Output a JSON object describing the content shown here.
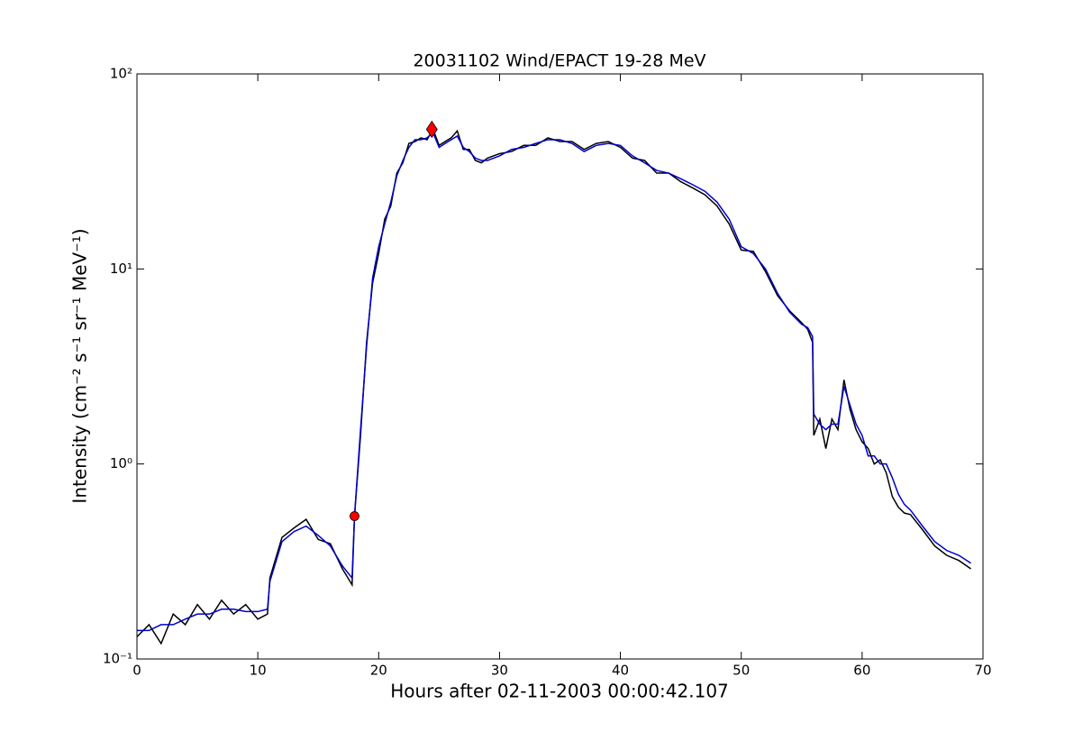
{
  "chart_data": {
    "type": "line",
    "title": "20031102 Wind/EPACT 19-28 MeV",
    "x_label": "Hours after 02-11-2003 00:00:42.107",
    "y_label": "Intensity (cm⁻² s⁻¹ sr⁻¹ MeV⁻¹)",
    "y_log": true,
    "xlim": [
      0,
      70
    ],
    "xticks": [
      0,
      10,
      20,
      30,
      40,
      50,
      60,
      70
    ],
    "ylim": [
      0.1,
      100
    ],
    "yticks": [
      {
        "value": 0.1,
        "label": "10⁻¹"
      },
      {
        "value": 1,
        "label": "10⁰"
      },
      {
        "value": 10,
        "label": "10¹"
      },
      {
        "value": 100,
        "label": "10²"
      }
    ],
    "series": [
      {
        "color": "#000000",
        "x": [
          0,
          1,
          2,
          3,
          4,
          5,
          6,
          7,
          8,
          9,
          10,
          10.8,
          11,
          12,
          13,
          14,
          15,
          16,
          17,
          17.8,
          18,
          18.5,
          19,
          19.5,
          20,
          20.5,
          21,
          21.5,
          22,
          22.5,
          23,
          23.5,
          24,
          24.5,
          25,
          25.5,
          26,
          26.5,
          27,
          27.5,
          28,
          28.5,
          29,
          30,
          31,
          32,
          33,
          34,
          35,
          36,
          37,
          38,
          39,
          40,
          41,
          42,
          43,
          44,
          45,
          46,
          47,
          48,
          49,
          50,
          51,
          52,
          53,
          54,
          55,
          55.5,
          55.9,
          56,
          56.5,
          57,
          57.5,
          58,
          58.5,
          59,
          59.5,
          60,
          60.5,
          61,
          61.5,
          62,
          62.5,
          63,
          63.5,
          64,
          65,
          66,
          67,
          68,
          69
        ],
        "values": [
          0.13,
          0.15,
          0.12,
          0.17,
          0.15,
          0.19,
          0.16,
          0.2,
          0.17,
          0.19,
          0.16,
          0.17,
          0.26,
          0.42,
          0.47,
          0.52,
          0.41,
          0.39,
          0.29,
          0.24,
          0.54,
          1.4,
          4.2,
          8.5,
          12,
          18,
          21,
          31,
          35,
          44,
          45,
          47,
          46,
          52,
          43,
          45,
          47,
          51,
          41,
          41,
          36,
          35,
          37,
          39,
          40,
          43,
          43,
          47,
          45,
          45,
          41,
          44,
          45,
          42,
          37,
          36,
          31,
          31,
          28,
          26,
          24,
          21,
          17,
          12.5,
          12.3,
          9.7,
          7.3,
          6.1,
          5.3,
          4.9,
          4.2,
          1.4,
          1.7,
          1.2,
          1.7,
          1.5,
          2.7,
          1.9,
          1.5,
          1.3,
          1.2,
          1.0,
          1.05,
          0.9,
          0.68,
          0.6,
          0.56,
          0.55,
          0.46,
          0.38,
          0.34,
          0.32,
          0.29
        ]
      },
      {
        "color": "#0000cc",
        "x": [
          0,
          1,
          2,
          3,
          4,
          5,
          6,
          7,
          8,
          9,
          10,
          10.8,
          11,
          12,
          13,
          14,
          15,
          16,
          17,
          17.8,
          18,
          18.5,
          19,
          19.5,
          20,
          20.5,
          21,
          21.5,
          22,
          22.5,
          23,
          23.5,
          24,
          24.5,
          25,
          25.5,
          26,
          26.5,
          27,
          27.5,
          28,
          28.5,
          29,
          30,
          31,
          32,
          33,
          34,
          35,
          36,
          37,
          38,
          39,
          40,
          41,
          42,
          43,
          44,
          45,
          46,
          47,
          48,
          49,
          50,
          51,
          52,
          53,
          54,
          55,
          55.5,
          55.9,
          56,
          56.5,
          57,
          57.5,
          58,
          58.5,
          59,
          59.5,
          60,
          60.5,
          61,
          61.5,
          62,
          62.5,
          63,
          63.5,
          64,
          65,
          66,
          67,
          68,
          69
        ],
        "values": [
          0.14,
          0.14,
          0.15,
          0.15,
          0.16,
          0.17,
          0.17,
          0.18,
          0.18,
          0.175,
          0.175,
          0.18,
          0.25,
          0.4,
          0.45,
          0.48,
          0.43,
          0.38,
          0.3,
          0.26,
          0.54,
          1.5,
          4,
          9,
          13,
          17,
          22,
          30,
          36,
          42,
          46,
          46,
          47,
          50,
          42,
          44,
          46,
          48,
          42,
          40,
          37,
          36,
          36,
          38,
          41,
          42,
          44,
          46,
          46,
          44,
          40,
          43,
          44,
          43,
          38,
          35,
          32,
          31,
          29,
          27,
          25,
          22,
          18,
          13,
          12,
          10,
          7.5,
          6,
          5.2,
          5.0,
          4.5,
          1.8,
          1.6,
          1.5,
          1.6,
          1.6,
          2.5,
          2.0,
          1.6,
          1.4,
          1.1,
          1.1,
          1.0,
          1.0,
          0.85,
          0.7,
          0.62,
          0.58,
          0.48,
          0.4,
          0.36,
          0.34,
          0.31
        ]
      },
      {
        "color": "#ff0000",
        "marker": "circle",
        "x": [
          18
        ],
        "values": [
          0.54
        ]
      },
      {
        "color": "#ff0000",
        "marker": "diamond",
        "x": [
          24.4
        ],
        "values": [
          52
        ]
      }
    ]
  }
}
